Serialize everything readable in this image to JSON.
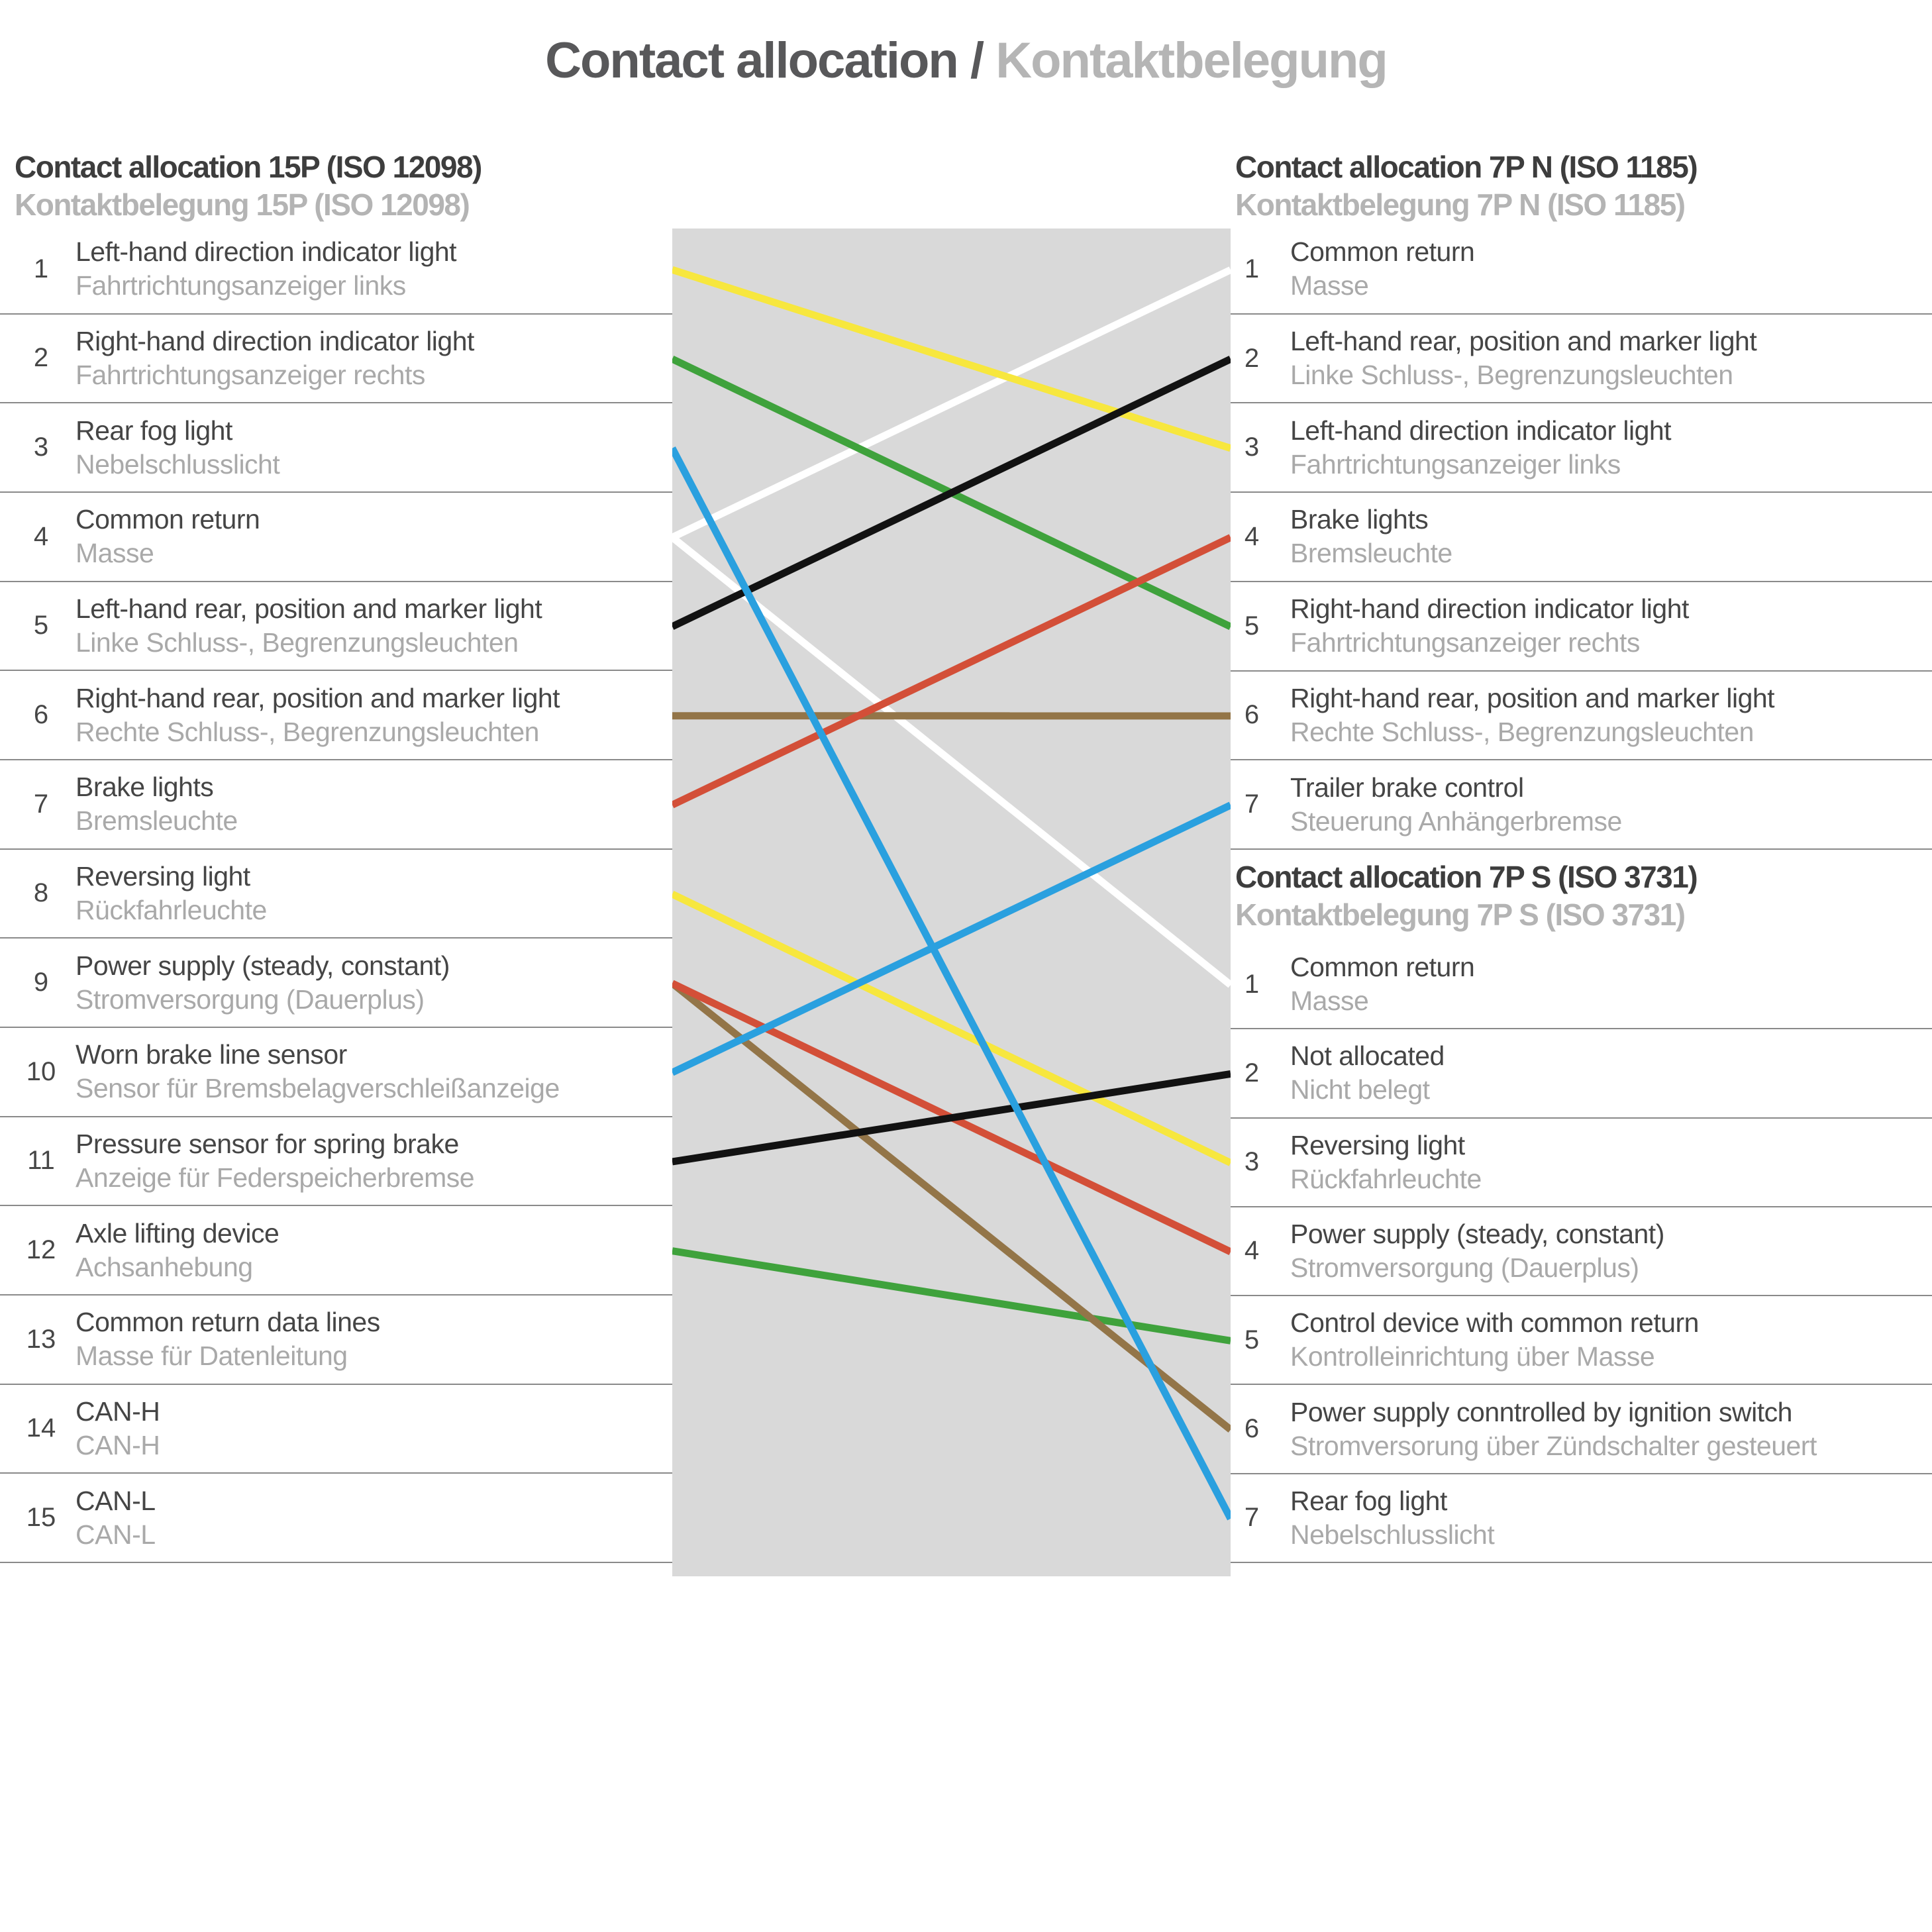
{
  "title": {
    "en": "Contact allocation / ",
    "de": "Kontaktbelegung"
  },
  "colors": {
    "panel": "#d9d9d9",
    "separator": "#8a8a8a",
    "title_en": "#58585a",
    "title_de": "#b5b5b5",
    "label_en": "#454545",
    "label_de": "#a9a9a9",
    "wires": {
      "white": "#ffffff",
      "yellow": "#f7e73e",
      "green": "#3fa23c",
      "brown": "#937548",
      "red": "#d34f38",
      "black": "#121212",
      "blue": "#2aa0df"
    }
  },
  "left_table": {
    "header": {
      "en": "Contact allocation 15P (ISO 12098)",
      "de": "Kontaktbelegung 15P (ISO 12098)"
    },
    "rows": [
      {
        "n": 1,
        "en": "Left-hand direction indicator light",
        "de": "Fahrtrichtungsanzeiger links"
      },
      {
        "n": 2,
        "en": "Right-hand direction indicator light",
        "de": "Fahrtrichtungsanzeiger rechts"
      },
      {
        "n": 3,
        "en": "Rear fog light",
        "de": "Nebelschlusslicht"
      },
      {
        "n": 4,
        "en": "Common return",
        "de": "Masse"
      },
      {
        "n": 5,
        "en": "Left-hand rear, position and marker light",
        "de": "Linke Schluss-, Begrenzungsleuchten"
      },
      {
        "n": 6,
        "en": "Right-hand rear, position and marker light",
        "de": "Rechte Schluss-, Begrenzungsleuchten"
      },
      {
        "n": 7,
        "en": "Brake lights",
        "de": "Bremsleuchte"
      },
      {
        "n": 8,
        "en": "Reversing light",
        "de": "Rückfahrleuchte"
      },
      {
        "n": 9,
        "en": "Power supply (steady, constant)",
        "de": "Stromversorgung (Dauerplus)"
      },
      {
        "n": 10,
        "en": "Worn brake line sensor",
        "de": "Sensor für Bremsbelagverschleißanzeige"
      },
      {
        "n": 11,
        "en": "Pressure sensor for spring brake",
        "de": "Anzeige für Federspeicherbremse"
      },
      {
        "n": 12,
        "en": "Axle lifting device",
        "de": "Achsanhebung"
      },
      {
        "n": 13,
        "en": "Common return data lines",
        "de": "Masse für Datenleitung"
      },
      {
        "n": 14,
        "en": "CAN-H",
        "de": "CAN-H"
      },
      {
        "n": 15,
        "en": "CAN-L",
        "de": "CAN-L"
      }
    ]
  },
  "right_table_n": {
    "header": {
      "en": "Contact allocation 7P N (ISO 1185)",
      "de": "Kontaktbelegung 7P N (ISO 1185)"
    },
    "rows": [
      {
        "n": 1,
        "en": "Common return",
        "de": "Masse"
      },
      {
        "n": 2,
        "en": "Left-hand rear, position and marker light",
        "de": "Linke Schluss-, Begrenzungsleuchten"
      },
      {
        "n": 3,
        "en": "Left-hand direction indicator light",
        "de": "Fahrtrichtungsanzeiger links"
      },
      {
        "n": 4,
        "en": "Brake lights",
        "de": "Bremsleuchte"
      },
      {
        "n": 5,
        "en": "Right-hand direction indicator light",
        "de": "Fahrtrichtungsanzeiger rechts"
      },
      {
        "n": 6,
        "en": "Right-hand rear, position and marker light",
        "de": "Rechte Schluss-, Begrenzungsleuchten"
      },
      {
        "n": 7,
        "en": "Trailer brake control",
        "de": "Steuerung Anhängerbremse"
      }
    ]
  },
  "right_table_s": {
    "header": {
      "en": "Contact allocation 7P S (ISO 3731)",
      "de": "Kontaktbelegung 7P S (ISO 3731)"
    },
    "rows": [
      {
        "n": 1,
        "en": "Common return",
        "de": "Masse"
      },
      {
        "n": 2,
        "en": "Not allocated",
        "de": "Nicht belegt"
      },
      {
        "n": 3,
        "en": "Reversing light",
        "de": "Rückfahrleuchte"
      },
      {
        "n": 4,
        "en": "Power supply (steady, constant)",
        "de": "Stromversorgung (Dauerplus)"
      },
      {
        "n": 5,
        "en": "Control device with common return",
        "de": "Kontrolleinrichtung über Masse"
      },
      {
        "n": 6,
        "en": "Power supply conntrolled by ignition switch",
        "de": "Stromversorung über Zündschalter gesteuert"
      },
      {
        "n": 7,
        "en": "Rear fog light",
        "de": "Nebelschlusslicht"
      }
    ]
  },
  "wires": [
    {
      "color": "white",
      "from_connector": "15P",
      "from_pin": 4,
      "to_connector": "7PN",
      "to_pin": 1
    },
    {
      "color": "white",
      "from_connector": "15P",
      "from_pin": 4,
      "to_connector": "7PS",
      "to_pin": 1
    },
    {
      "color": "yellow",
      "from_connector": "15P",
      "from_pin": 1,
      "to_connector": "7PN",
      "to_pin": 3
    },
    {
      "color": "yellow",
      "from_connector": "15P",
      "from_pin": 8,
      "to_connector": "7PS",
      "to_pin": 3
    },
    {
      "color": "green",
      "from_connector": "15P",
      "from_pin": 2,
      "to_connector": "7PN",
      "to_pin": 5
    },
    {
      "color": "green",
      "from_connector": "15P",
      "from_pin": 12,
      "to_connector": "7PS",
      "to_pin": 5
    },
    {
      "color": "brown",
      "from_connector": "15P",
      "from_pin": 6,
      "to_connector": "7PN",
      "to_pin": 6
    },
    {
      "color": "brown",
      "from_connector": "15P",
      "from_pin": 9,
      "to_connector": "7PS",
      "to_pin": 6
    },
    {
      "color": "red",
      "from_connector": "15P",
      "from_pin": 7,
      "to_connector": "7PN",
      "to_pin": 4
    },
    {
      "color": "red",
      "from_connector": "15P",
      "from_pin": 9,
      "to_connector": "7PS",
      "to_pin": 4
    },
    {
      "color": "black",
      "from_connector": "15P",
      "from_pin": 5,
      "to_connector": "7PN",
      "to_pin": 2
    },
    {
      "color": "black",
      "from_connector": "15P",
      "from_pin": 11,
      "to_connector": "7PS",
      "to_pin": 2
    },
    {
      "color": "blue",
      "from_connector": "15P",
      "from_pin": 3,
      "to_connector": "7PS",
      "to_pin": 7
    },
    {
      "color": "blue",
      "from_connector": "15P",
      "from_pin": 10,
      "to_connector": "7PN",
      "to_pin": 7
    }
  ]
}
